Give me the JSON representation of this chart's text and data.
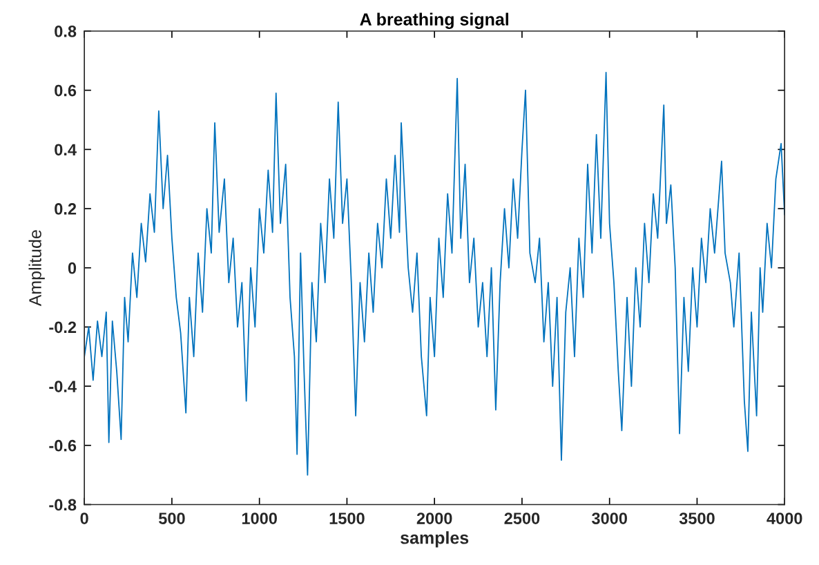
{
  "chart_data": {
    "type": "line",
    "title": "A breathing signal",
    "xlabel": "samples",
    "ylabel": "Amplitude",
    "xlim": [
      0,
      4000
    ],
    "xticks": [
      0,
      500,
      1000,
      1500,
      2000,
      2500,
      3000,
      3500,
      4000
    ],
    "ylim": [
      -0.8,
      0.8
    ],
    "yticks": [
      -0.8,
      -0.6,
      -0.4,
      -0.2,
      0,
      0.2,
      0.4,
      0.6,
      0.8
    ],
    "grid": false,
    "marker": "none",
    "line_style": "solid",
    "series": [
      {
        "color": "#0072bd",
        "x": [
          0,
          25,
          50,
          75,
          100,
          125,
          140,
          160,
          185,
          210,
          230,
          250,
          275,
          300,
          325,
          350,
          375,
          400,
          425,
          450,
          475,
          500,
          525,
          550,
          580,
          600,
          625,
          650,
          675,
          700,
          725,
          745,
          770,
          800,
          825,
          850,
          875,
          900,
          925,
          950,
          975,
          1000,
          1025,
          1050,
          1075,
          1095,
          1120,
          1150,
          1175,
          1200,
          1215,
          1235,
          1255,
          1275,
          1300,
          1325,
          1350,
          1375,
          1400,
          1425,
          1450,
          1475,
          1500,
          1525,
          1550,
          1575,
          1600,
          1625,
          1650,
          1675,
          1700,
          1725,
          1750,
          1775,
          1800,
          1810,
          1850,
          1875,
          1900,
          1925,
          1955,
          1975,
          2000,
          2025,
          2050,
          2075,
          2100,
          2130,
          2150,
          2175,
          2200,
          2225,
          2250,
          2275,
          2300,
          2325,
          2350,
          2375,
          2400,
          2425,
          2450,
          2475,
          2500,
          2520,
          2545,
          2575,
          2600,
          2625,
          2650,
          2675,
          2700,
          2725,
          2750,
          2775,
          2800,
          2825,
          2850,
          2875,
          2900,
          2925,
          2950,
          2980,
          3000,
          3025,
          3050,
          3070,
          3100,
          3125,
          3150,
          3175,
          3200,
          3225,
          3250,
          3275,
          3310,
          3325,
          3350,
          3375,
          3400,
          3425,
          3450,
          3475,
          3500,
          3525,
          3550,
          3575,
          3600,
          3640,
          3660,
          3690,
          3710,
          3740,
          3770,
          3790,
          3810,
          3840,
          3860,
          3875,
          3900,
          3925,
          3950,
          3980,
          4000
        ],
        "values": [
          -0.3,
          -0.2,
          -0.38,
          -0.18,
          -0.3,
          -0.15,
          -0.59,
          -0.18,
          -0.35,
          -0.58,
          -0.1,
          -0.25,
          0.05,
          -0.1,
          0.15,
          0.02,
          0.25,
          0.12,
          0.53,
          0.2,
          0.38,
          0.1,
          -0.1,
          -0.22,
          -0.49,
          -0.1,
          -0.3,
          0.05,
          -0.15,
          0.2,
          0.05,
          0.49,
          0.12,
          0.3,
          -0.05,
          0.1,
          -0.2,
          -0.05,
          -0.45,
          0.0,
          -0.2,
          0.2,
          0.05,
          0.33,
          0.12,
          0.59,
          0.15,
          0.35,
          -0.1,
          -0.3,
          -0.63,
          0.05,
          -0.35,
          -0.7,
          -0.05,
          -0.25,
          0.15,
          -0.05,
          0.3,
          0.1,
          0.56,
          0.15,
          0.3,
          -0.05,
          -0.5,
          -0.05,
          -0.25,
          0.05,
          -0.15,
          0.15,
          0.0,
          0.3,
          0.1,
          0.38,
          0.12,
          0.49,
          0.0,
          -0.15,
          0.05,
          -0.3,
          -0.5,
          -0.1,
          -0.3,
          0.1,
          -0.1,
          0.25,
          0.05,
          0.64,
          0.1,
          0.35,
          -0.05,
          0.1,
          -0.2,
          -0.05,
          -0.3,
          0.0,
          -0.48,
          -0.05,
          0.2,
          0.0,
          0.3,
          0.1,
          0.4,
          0.6,
          0.05,
          -0.05,
          0.1,
          -0.25,
          -0.05,
          -0.4,
          -0.1,
          -0.65,
          -0.15,
          0.0,
          -0.3,
          0.1,
          -0.1,
          0.35,
          0.05,
          0.45,
          0.1,
          0.66,
          0.15,
          -0.05,
          -0.35,
          -0.55,
          -0.1,
          -0.4,
          0.0,
          -0.2,
          0.15,
          -0.05,
          0.25,
          0.1,
          0.55,
          0.15,
          0.28,
          0.0,
          -0.56,
          -0.1,
          -0.35,
          0.0,
          -0.2,
          0.1,
          -0.05,
          0.2,
          0.05,
          0.36,
          0.05,
          -0.05,
          -0.2,
          0.05,
          -0.45,
          -0.62,
          -0.15,
          -0.5,
          0.0,
          -0.15,
          0.15,
          0.0,
          0.3,
          0.42,
          0.18
        ]
      }
    ]
  }
}
